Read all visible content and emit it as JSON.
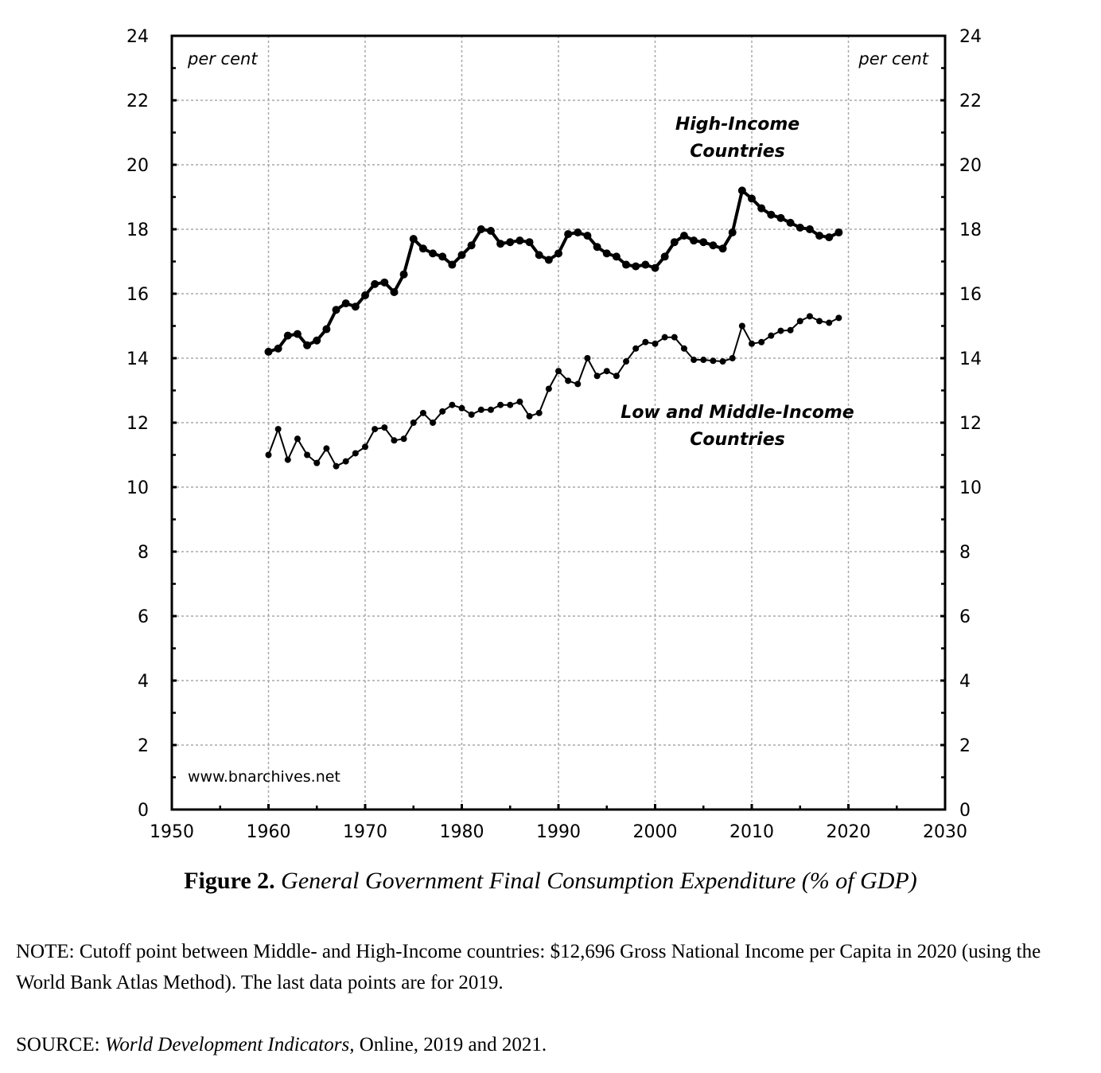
{
  "chart_data": {
    "type": "line",
    "title": "General Government Final Consumption Expenditure (% of GDP)",
    "figure_number": "Figure 2.",
    "xlabel": "",
    "ylabel": "per cent",
    "ylabel_right": "per cent",
    "xlim": [
      1950,
      2030
    ],
    "ylim": [
      0,
      24
    ],
    "x_ticks": [
      1950,
      1960,
      1970,
      1980,
      1990,
      2000,
      2010,
      2020,
      2030
    ],
    "y_ticks": [
      0,
      2,
      4,
      6,
      8,
      10,
      12,
      14,
      16,
      18,
      20,
      22,
      24
    ],
    "grid": true,
    "watermark": "www.bnarchives.net",
    "series": [
      {
        "name": "High-Income Countries",
        "label_lines": [
          "High-Income",
          "Countries"
        ],
        "style": "thick",
        "x": [
          1960,
          1961,
          1962,
          1963,
          1964,
          1965,
          1966,
          1967,
          1968,
          1969,
          1970,
          1971,
          1972,
          1973,
          1974,
          1975,
          1976,
          1977,
          1978,
          1979,
          1980,
          1981,
          1982,
          1983,
          1984,
          1985,
          1986,
          1987,
          1988,
          1989,
          1990,
          1991,
          1992,
          1993,
          1994,
          1995,
          1996,
          1997,
          1998,
          1999,
          2000,
          2001,
          2002,
          2003,
          2004,
          2005,
          2006,
          2007,
          2008,
          2009,
          2010,
          2011,
          2012,
          2013,
          2014,
          2015,
          2016,
          2017,
          2018,
          2019
        ],
        "values": [
          14.2,
          14.3,
          14.7,
          14.75,
          14.4,
          14.55,
          14.9,
          15.5,
          15.7,
          15.6,
          15.95,
          16.3,
          16.35,
          16.05,
          16.6,
          17.7,
          17.4,
          17.25,
          17.15,
          16.9,
          17.2,
          17.5,
          18.0,
          17.95,
          17.55,
          17.6,
          17.65,
          17.6,
          17.2,
          17.05,
          17.25,
          17.85,
          17.9,
          17.8,
          17.45,
          17.25,
          17.15,
          16.9,
          16.85,
          16.9,
          16.8,
          17.15,
          17.6,
          17.8,
          17.65,
          17.6,
          17.5,
          17.4,
          17.9,
          19.2,
          18.95,
          18.65,
          18.45,
          18.35,
          18.2,
          18.05,
          18.0,
          17.8,
          17.75,
          17.9
        ]
      },
      {
        "name": "Low and Middle-Income Countries",
        "label_lines": [
          "Low and Middle-Income",
          "Countries"
        ],
        "style": "thin",
        "x": [
          1960,
          1961,
          1962,
          1963,
          1964,
          1965,
          1966,
          1967,
          1968,
          1969,
          1970,
          1971,
          1972,
          1973,
          1974,
          1975,
          1976,
          1977,
          1978,
          1979,
          1980,
          1981,
          1982,
          1983,
          1984,
          1985,
          1986,
          1987,
          1988,
          1989,
          1990,
          1991,
          1992,
          1993,
          1994,
          1995,
          1996,
          1997,
          1998,
          1999,
          2000,
          2001,
          2002,
          2003,
          2004,
          2005,
          2006,
          2007,
          2008,
          2009,
          2010,
          2011,
          2012,
          2013,
          2014,
          2015,
          2016,
          2017,
          2018,
          2019
        ],
        "values": [
          11.0,
          11.8,
          10.85,
          11.5,
          11.0,
          10.75,
          11.2,
          10.65,
          10.8,
          11.05,
          11.25,
          11.8,
          11.85,
          11.45,
          11.5,
          12.0,
          12.3,
          12.0,
          12.35,
          12.55,
          12.45,
          12.25,
          12.4,
          12.4,
          12.55,
          12.55,
          12.65,
          12.2,
          12.3,
          13.05,
          13.6,
          13.3,
          13.2,
          14.0,
          13.45,
          13.6,
          13.45,
          13.9,
          14.3,
          14.5,
          14.45,
          14.65,
          14.65,
          14.3,
          13.95,
          13.95,
          13.92,
          13.9,
          14.0,
          15.0,
          14.45,
          14.5,
          14.7,
          14.85,
          14.87,
          15.15,
          15.3,
          15.15,
          15.1,
          15.25
        ]
      }
    ]
  },
  "caption": {
    "figure_number": "Figure 2.",
    "title": "General Government Final Consumption Expenditure (% of GDP)"
  },
  "note": {
    "text": "NOTE: Cutoff point between Middle- and High-Income countries: $12,696 Gross National Income per Capita in 2020 (using the World Bank Atlas Method). The last data points are for 2019."
  },
  "source": {
    "prefix": "SOURCE: ",
    "italic": "World Development Indicators,",
    "suffix": " Online, 2019 and 2021."
  },
  "colors": {
    "line": "#000000",
    "grid": "#a8a8a8",
    "axis": "#000000"
  }
}
